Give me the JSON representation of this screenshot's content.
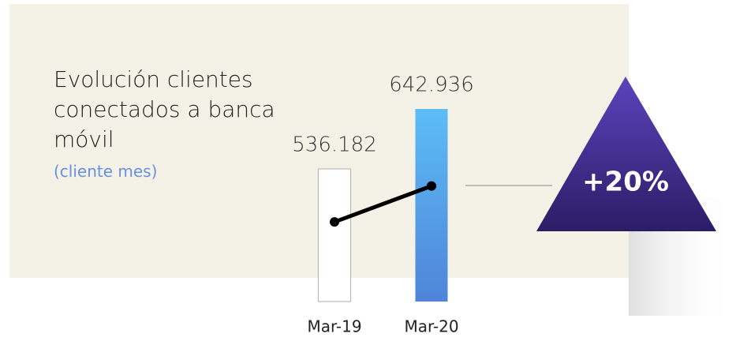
{
  "chart_data": {
    "type": "bar",
    "title": "Evolución clientes conectados a banca móvil",
    "subtitle": "(cliente mes)",
    "categories": [
      "Mar-19",
      "Mar-20"
    ],
    "values": [
      536182,
      642936
    ],
    "value_labels": [
      "536.182",
      "642.936"
    ],
    "colors": [
      "#ffffff",
      "#5cbdf6"
    ],
    "ylim": [
      300000,
      650000
    ],
    "annotation": "+20%"
  }
}
